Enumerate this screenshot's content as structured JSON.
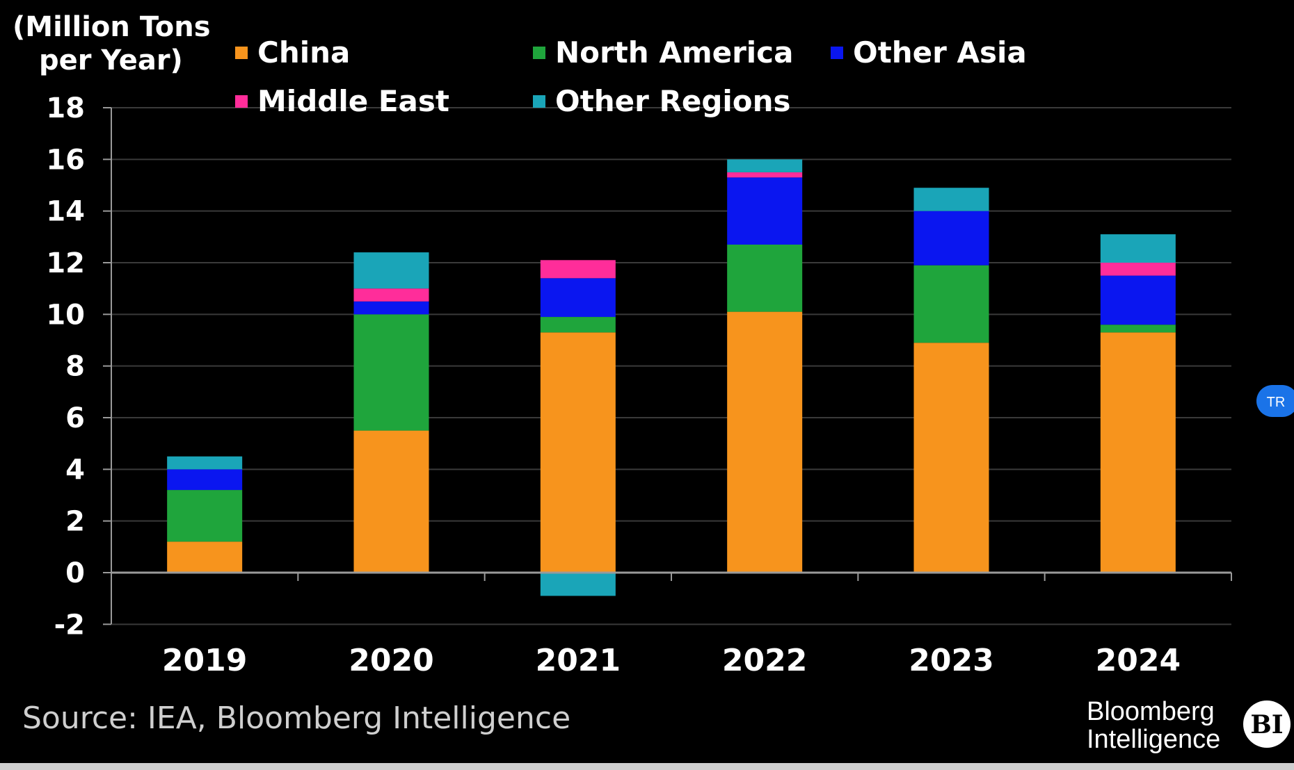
{
  "unit_label": [
    "(Million Tons",
    "per Year)"
  ],
  "source": "Source: IEA, Bloomberg Intelligence",
  "brand": {
    "line1": "Bloomberg",
    "line2": "Intelligence",
    "badge": "BI"
  },
  "tr_button": "TR",
  "colors": {
    "background": "#000000",
    "grid": "#3a3a3a",
    "axis": "#9a9a9a"
  },
  "chart_data": {
    "type": "bar",
    "stacked": true,
    "title": "",
    "xlabel": "",
    "ylabel": "(Million Tons per Year)",
    "ylim": [
      -2,
      18
    ],
    "yticks": [
      18,
      16,
      14,
      12,
      10,
      8,
      6,
      4,
      2,
      0,
      -2
    ],
    "grid": true,
    "legend_position": "top",
    "categories": [
      "2019",
      "2020",
      "2021",
      "2022",
      "2023",
      "2024"
    ],
    "series": [
      {
        "name": "China",
        "color": "#f7941d",
        "values": [
          1.2,
          5.5,
          9.3,
          10.1,
          8.9,
          9.3
        ]
      },
      {
        "name": "North America",
        "color": "#1fa53c",
        "values": [
          2.0,
          4.5,
          0.6,
          2.6,
          3.0,
          0.3
        ]
      },
      {
        "name": "Other Asia",
        "color": "#0a16f0",
        "values": [
          0.8,
          0.5,
          1.5,
          2.6,
          2.1,
          1.9
        ]
      },
      {
        "name": "Middle East",
        "color": "#ff2d9a",
        "values": [
          0.0,
          0.5,
          0.7,
          0.2,
          0.0,
          0.5
        ]
      },
      {
        "name": "Other Regions",
        "color": "#1aa5b8",
        "values": [
          0.5,
          1.4,
          -0.9,
          0.5,
          0.9,
          1.1
        ]
      }
    ]
  }
}
